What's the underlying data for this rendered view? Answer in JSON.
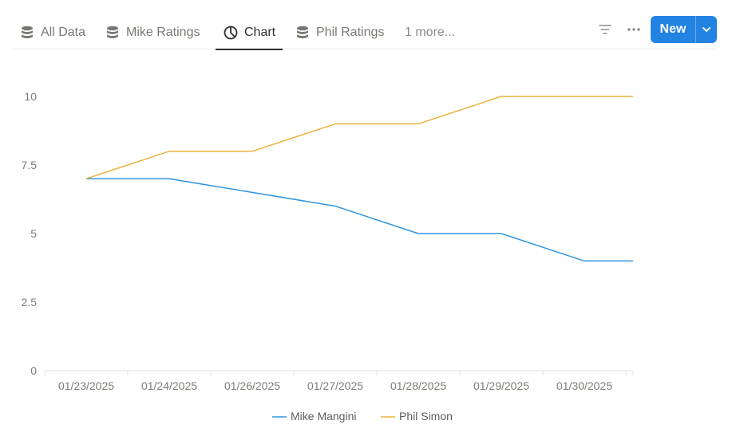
{
  "tabs": [
    {
      "label": "All Data",
      "icon": "database-icon",
      "active": false
    },
    {
      "label": "Mike Ratings",
      "icon": "database-icon",
      "active": false
    },
    {
      "label": "Chart",
      "icon": "pie-chart-icon",
      "active": true
    },
    {
      "label": "Phil Ratings",
      "icon": "database-icon",
      "active": false
    }
  ],
  "more_tabs_label": "1 more...",
  "toolbar": {
    "filter_icon": "filter-icon",
    "more_icon": "more-horizontal-icon",
    "new_label": "New",
    "new_dropdown_icon": "chevron-down-icon"
  },
  "colors": {
    "accent": "#2383e2",
    "series_mike": "#2f95e0",
    "series_phil": "#e9b23b"
  },
  "chart_data": {
    "type": "line",
    "title": "",
    "xlabel": "",
    "ylabel": "",
    "categories": [
      "01/23/2025",
      "01/24/2025",
      "01/26/2025",
      "01/27/2025",
      "01/28/2025",
      "01/29/2025",
      "01/30/2025"
    ],
    "series": [
      {
        "name": "Mike Mangini",
        "color": "#2f95e0",
        "values": [
          7,
          7,
          6.5,
          6,
          5,
          5,
          4
        ]
      },
      {
        "name": "Phil Simon",
        "color": "#e9b23b",
        "values": [
          7,
          8,
          8,
          9,
          9,
          10,
          10
        ]
      }
    ],
    "ylim": [
      0,
      11
    ],
    "yticks": [
      0,
      2.5,
      5,
      7.5,
      10
    ],
    "ytick_labels": [
      "0",
      "2.5",
      "5",
      "7.5",
      "10"
    ],
    "grid": false,
    "legend_position": "bottom-center"
  }
}
